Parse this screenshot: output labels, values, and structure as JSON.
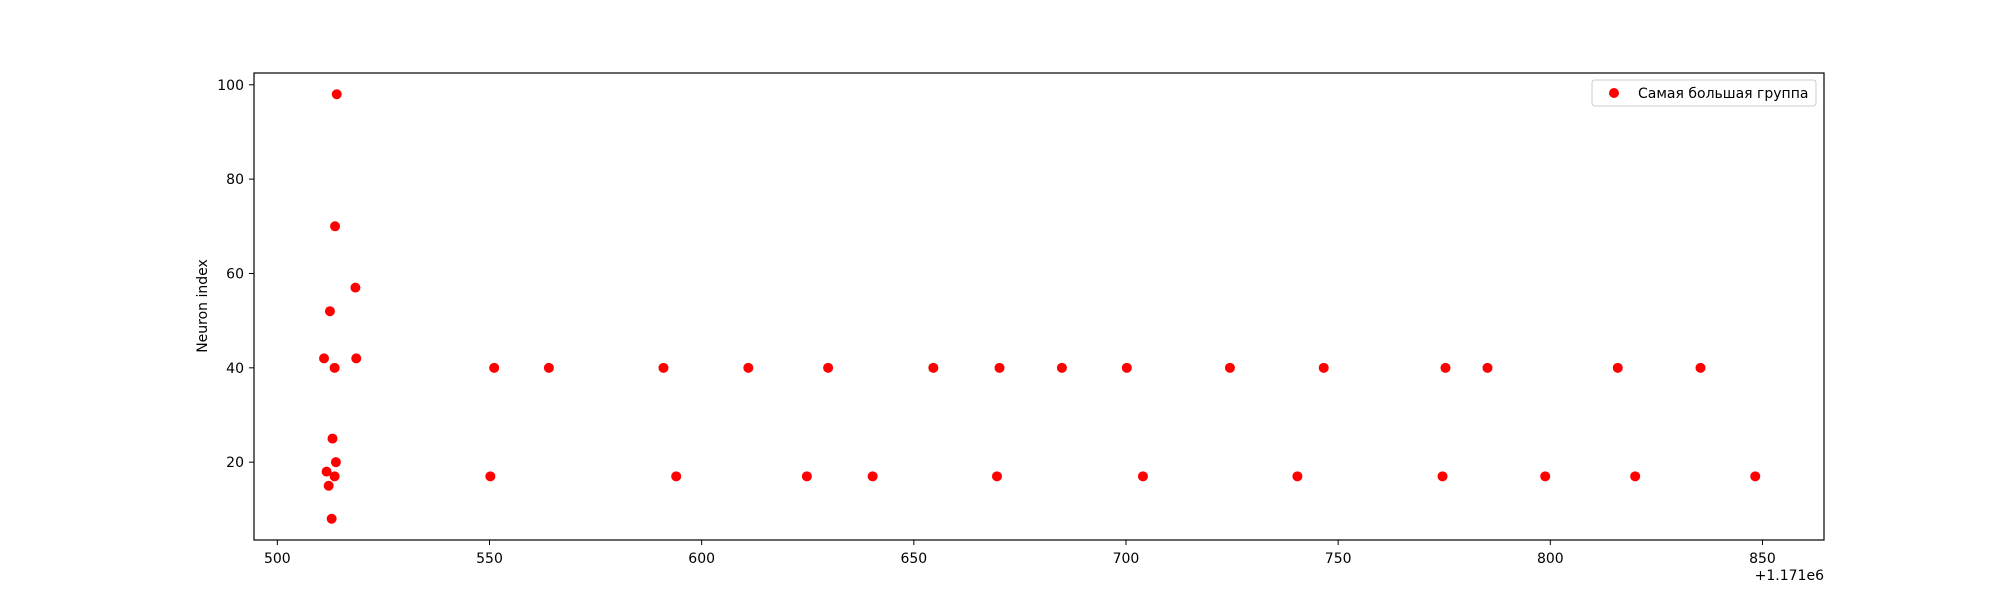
{
  "chart_data": {
    "type": "scatter",
    "title": "",
    "xlabel": "",
    "ylabel": "Neuron index",
    "x_offset_label": "+1.171e6",
    "xlim": [
      494.5,
      864.5
    ],
    "ylim": [
      3.5,
      102.5
    ],
    "xticks": [
      500,
      550,
      600,
      650,
      700,
      750,
      800,
      850
    ],
    "yticks": [
      20,
      40,
      60,
      80,
      100
    ],
    "grid": false,
    "legend_position": "top-right",
    "series": [
      {
        "name": "Самая большая группа",
        "color": "#ff0000",
        "marker": "circle",
        "points": [
          {
            "x": 511.0,
            "y": 42
          },
          {
            "x": 511.6,
            "y": 18
          },
          {
            "x": 512.1,
            "y": 15
          },
          {
            "x": 512.4,
            "y": 52
          },
          {
            "x": 512.8,
            "y": 8
          },
          {
            "x": 513.0,
            "y": 25
          },
          {
            "x": 513.5,
            "y": 40
          },
          {
            "x": 513.5,
            "y": 17
          },
          {
            "x": 513.6,
            "y": 70
          },
          {
            "x": 513.8,
            "y": 20
          },
          {
            "x": 514.0,
            "y": 98
          },
          {
            "x": 518.4,
            "y": 57
          },
          {
            "x": 518.6,
            "y": 42
          },
          {
            "x": 550.2,
            "y": 17
          },
          {
            "x": 551.1,
            "y": 40
          },
          {
            "x": 564.0,
            "y": 40
          },
          {
            "x": 591.0,
            "y": 40
          },
          {
            "x": 594.0,
            "y": 17
          },
          {
            "x": 611.0,
            "y": 40
          },
          {
            "x": 624.8,
            "y": 17
          },
          {
            "x": 629.8,
            "y": 40
          },
          {
            "x": 640.3,
            "y": 17
          },
          {
            "x": 654.6,
            "y": 40
          },
          {
            "x": 669.6,
            "y": 17
          },
          {
            "x": 670.2,
            "y": 40
          },
          {
            "x": 684.9,
            "y": 40
          },
          {
            "x": 700.2,
            "y": 40
          },
          {
            "x": 704.0,
            "y": 17
          },
          {
            "x": 724.5,
            "y": 40
          },
          {
            "x": 740.4,
            "y": 17
          },
          {
            "x": 746.6,
            "y": 40
          },
          {
            "x": 774.6,
            "y": 17
          },
          {
            "x": 775.3,
            "y": 40
          },
          {
            "x": 785.2,
            "y": 40
          },
          {
            "x": 798.8,
            "y": 17
          },
          {
            "x": 815.9,
            "y": 40
          },
          {
            "x": 820.0,
            "y": 17
          },
          {
            "x": 835.4,
            "y": 40
          },
          {
            "x": 848.3,
            "y": 17
          }
        ]
      }
    ]
  }
}
